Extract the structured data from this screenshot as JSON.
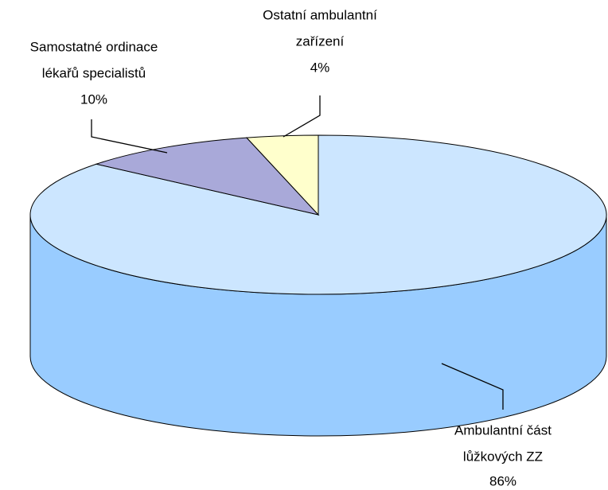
{
  "chart_data": {
    "type": "pie3d",
    "categories": [
      [
        "Ambulantní část",
        "lůžkových ZZ"
      ],
      [
        "Samostatné ordinace",
        "lékařů specialistů"
      ],
      [
        "Ostatní ambulantní",
        "zařízení"
      ]
    ],
    "values": [
      86,
      10,
      4
    ],
    "value_labels": [
      "86%",
      "10%",
      "4%"
    ],
    "colors": [
      "#cce6ff",
      "#a9a9d9",
      "#ffffcc"
    ],
    "side_color": "#99ccff"
  }
}
